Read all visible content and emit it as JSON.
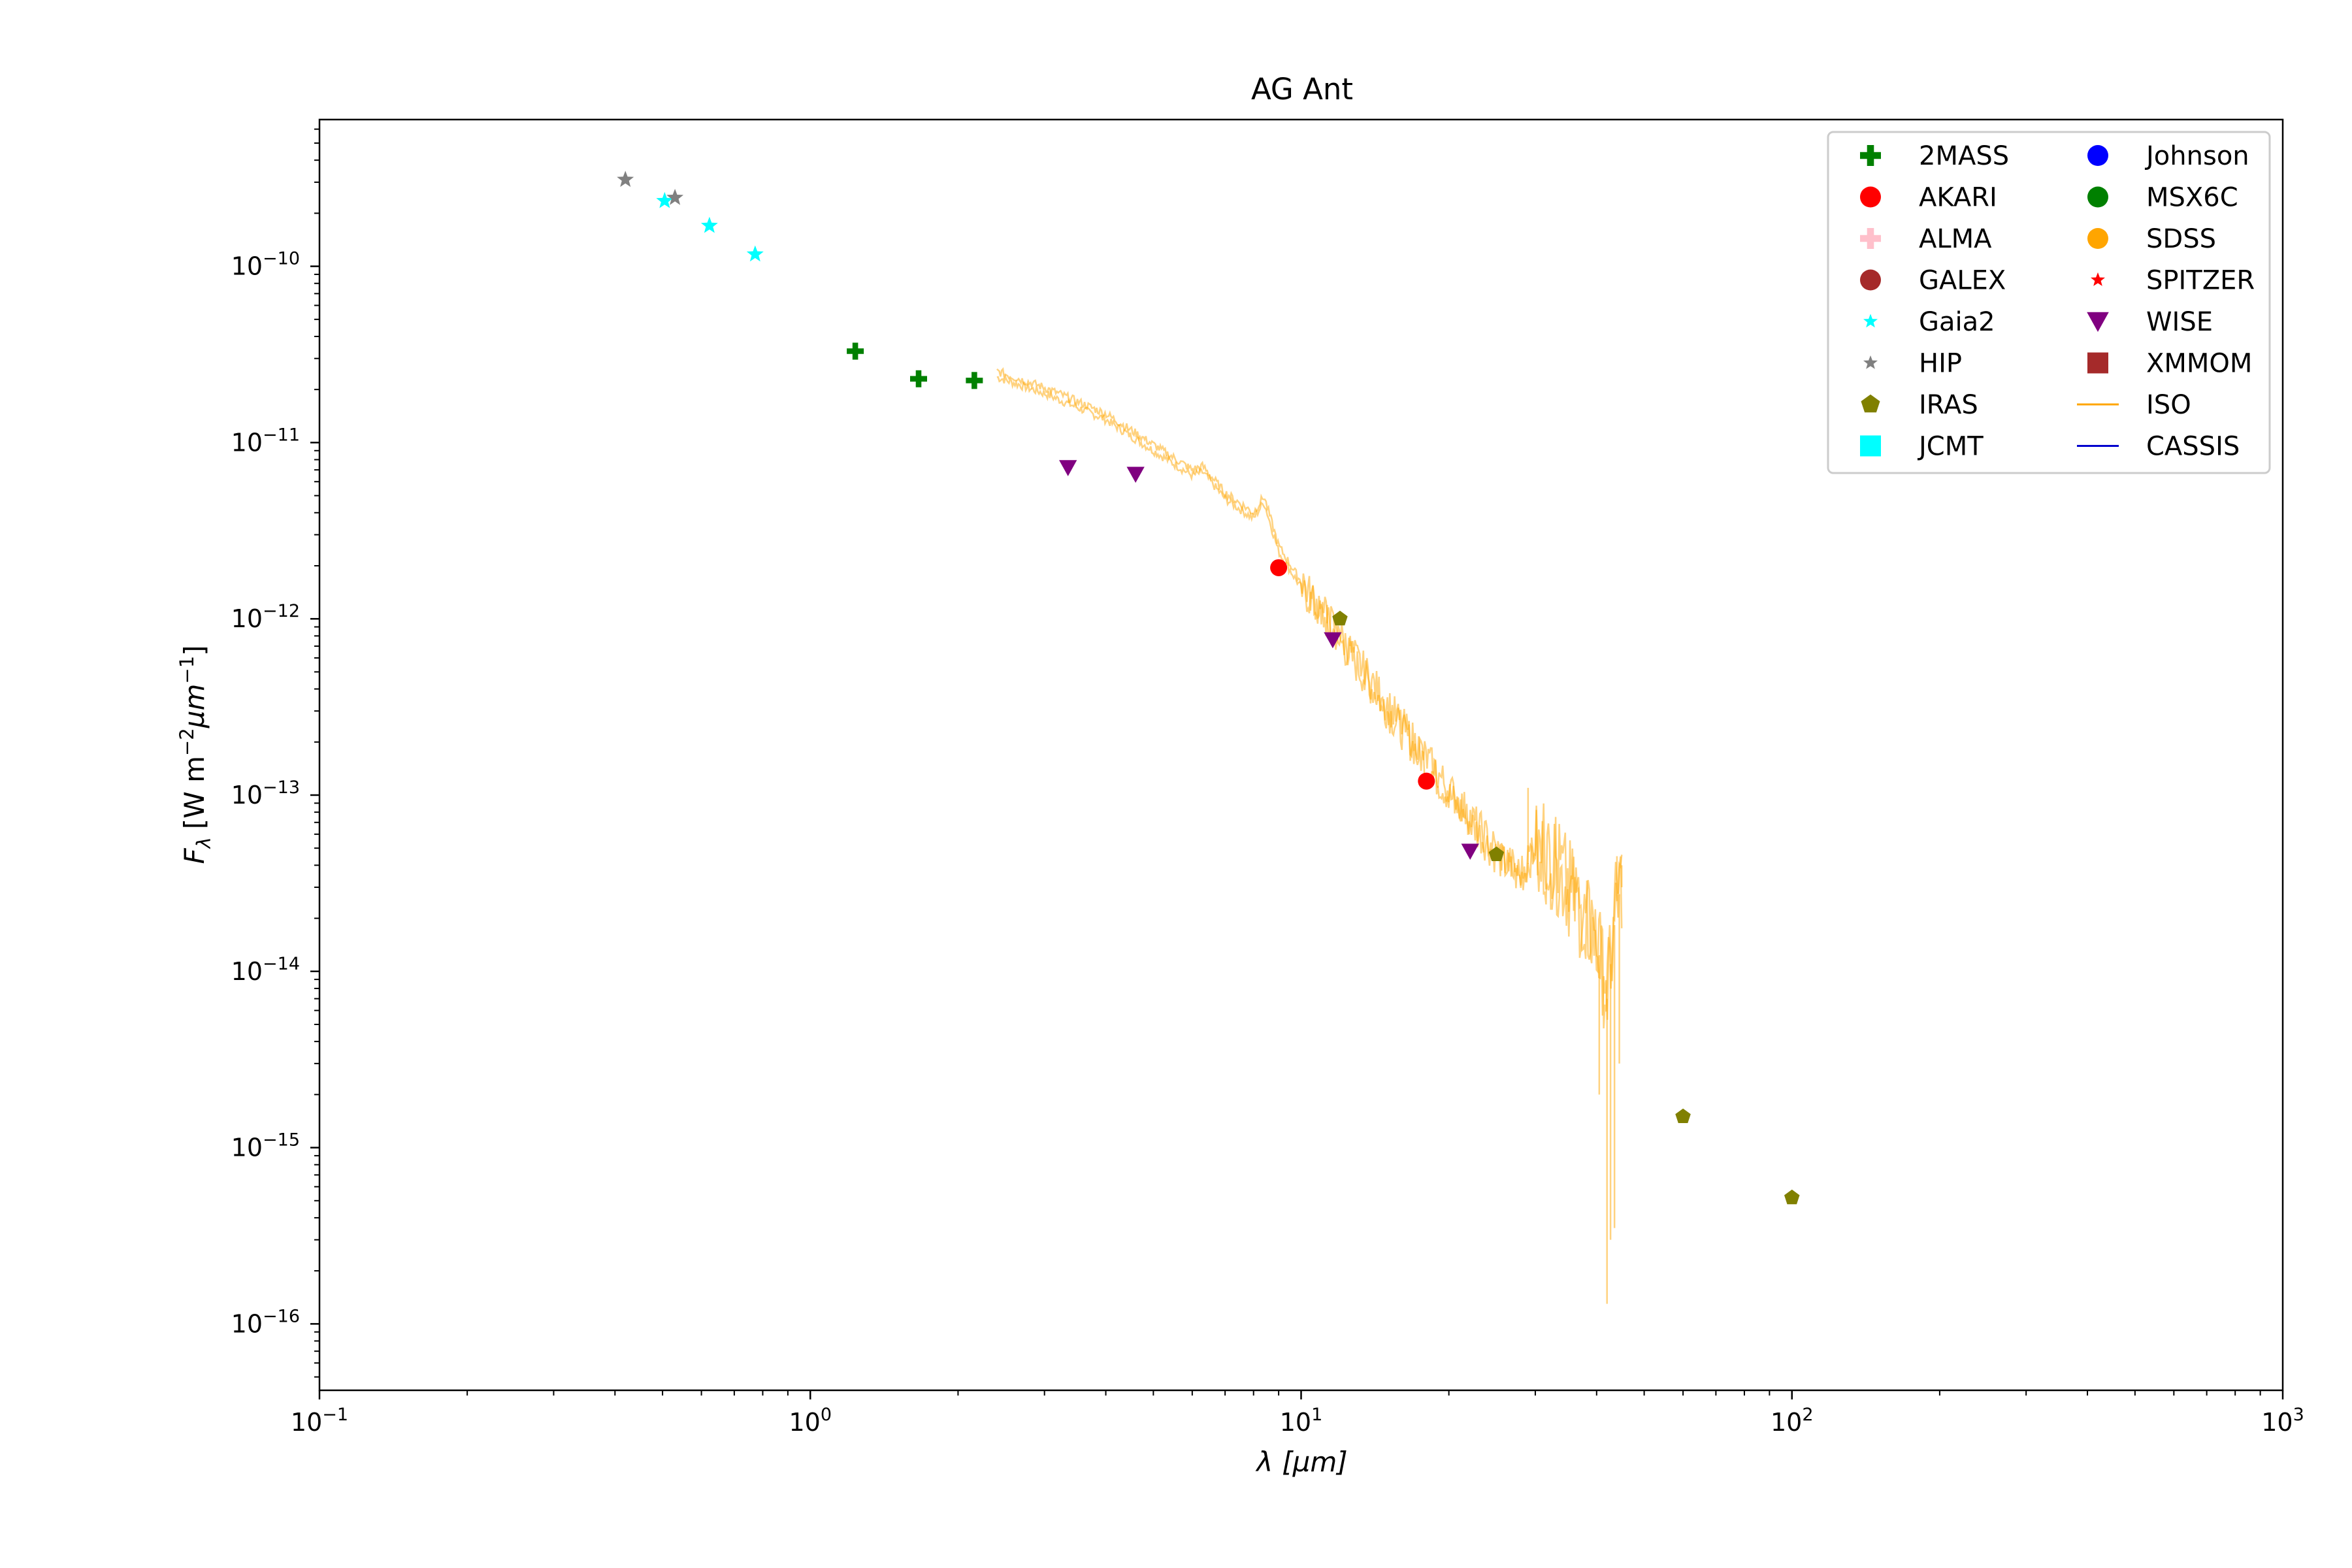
{
  "chart_data": {
    "type": "scatter",
    "title": "AG Ant",
    "xlabel_sym": "λ",
    "xlabel_unit": "[μm]",
    "ylabel_sym": "F",
    "ylabel_sub": "λ",
    "ylabel_unit_a": "[W m",
    "ylabel_unit_b": "μm",
    "ylabel_unit_c": "]",
    "xscale": "log",
    "yscale": "log",
    "xlim": [
      0.1,
      1000
    ],
    "ylim": [
      4.2e-17,
      6.8e-10
    ],
    "xticks": [
      {
        "value": 0.1,
        "base": "10",
        "exp": "−1"
      },
      {
        "value": 1,
        "base": "10",
        "exp": "0"
      },
      {
        "value": 10,
        "base": "10",
        "exp": "1"
      },
      {
        "value": 100,
        "base": "10",
        "exp": "2"
      },
      {
        "value": 1000,
        "base": "10",
        "exp": "3"
      }
    ],
    "yticks": [
      {
        "value": 1e-16,
        "base": "10",
        "exp": "−16"
      },
      {
        "value": 1e-15,
        "base": "10",
        "exp": "−15"
      },
      {
        "value": 1e-14,
        "base": "10",
        "exp": "−14"
      },
      {
        "value": 1e-13,
        "base": "10",
        "exp": "−13"
      },
      {
        "value": 1e-12,
        "base": "10",
        "exp": "−12"
      },
      {
        "value": 1e-11,
        "base": "10",
        "exp": "−11"
      },
      {
        "value": 1e-10,
        "base": "10",
        "exp": "−10"
      }
    ],
    "grid": false,
    "legend_position": "top-right",
    "series": [
      {
        "name": "2MASS",
        "marker": "plus",
        "color": "#008000",
        "points": [
          [
            1.235,
            3.3e-11
          ],
          [
            1.662,
            2.3e-11
          ],
          [
            2.159,
            2.25e-11
          ]
        ]
      },
      {
        "name": "AKARI",
        "marker": "circle",
        "color": "#ff0000",
        "points": [
          [
            9.0,
            1.95e-12
          ],
          [
            18.0,
            1.2e-13
          ]
        ]
      },
      {
        "name": "ALMA",
        "marker": "plus",
        "color": "#ffc0cb",
        "points": []
      },
      {
        "name": "GALEX",
        "marker": "circle",
        "color": "#a52a2a",
        "points": []
      },
      {
        "name": "Gaia2",
        "marker": "star",
        "color": "#00ffff",
        "points": [
          [
            0.505,
            2.35e-10
          ],
          [
            0.623,
            1.7e-10
          ],
          [
            0.772,
            1.17e-10
          ]
        ]
      },
      {
        "name": "HIP",
        "marker": "star",
        "color": "#808080",
        "points": [
          [
            0.42,
            3.1e-10
          ],
          [
            0.53,
            2.45e-10
          ]
        ]
      },
      {
        "name": "IRAS",
        "marker": "pentagon",
        "color": "#808000",
        "points": [
          [
            12,
            1e-12
          ],
          [
            25,
            4.6e-14
          ],
          [
            60,
            1.5e-15
          ],
          [
            100,
            5.2e-16
          ]
        ]
      },
      {
        "name": "JCMT",
        "marker": "square",
        "color": "#00ffff",
        "points": []
      },
      {
        "name": "Johnson",
        "marker": "circle",
        "color": "#0000ff",
        "points": []
      },
      {
        "name": "MSX6C",
        "marker": "circle",
        "color": "#008000",
        "points": []
      },
      {
        "name": "SDSS",
        "marker": "circle",
        "color": "#ffa500",
        "points": []
      },
      {
        "name": "SPITZER",
        "marker": "star",
        "color": "#ff0000",
        "points": []
      },
      {
        "name": "WISE",
        "marker": "triangle-down",
        "color": "#800080",
        "points": [
          [
            3.35,
            7.2e-12
          ],
          [
            4.6,
            6.6e-12
          ],
          [
            11.6,
            7.6e-13
          ],
          [
            22.1,
            4.8e-14
          ]
        ]
      },
      {
        "name": "XMMOM",
        "marker": "square",
        "color": "#a52a2a",
        "points": []
      },
      {
        "name": "ISO",
        "marker": "line",
        "color": "#ffa500",
        "points": []
      },
      {
        "name": "CASSIS",
        "marker": "line",
        "color": "#0000cd",
        "points": []
      }
    ],
    "iso_spectrum": {
      "color": "#ffa500",
      "opacity": 0.5,
      "anchors": [
        [
          2.4,
          2.35e-11
        ],
        [
          3.0,
          1.9e-11
        ],
        [
          4.0,
          1.35e-11
        ],
        [
          5.0,
          9e-12
        ],
        [
          6.0,
          6.5e-12
        ],
        [
          6.3,
          6.8e-12
        ],
        [
          7.0,
          4.8e-12
        ],
        [
          8.0,
          3.7e-12
        ],
        [
          8.4,
          4.6e-12
        ],
        [
          9.0,
          2.4e-12
        ],
        [
          10.0,
          1.5e-12
        ],
        [
          12.0,
          7.5e-13
        ],
        [
          15.0,
          3e-13
        ],
        [
          20.0,
          1e-13
        ],
        [
          25.0,
          4.5e-14
        ],
        [
          28.0,
          3.3e-14
        ],
        [
          30.0,
          5e-14
        ],
        [
          33.0,
          4e-14
        ],
        [
          36.0,
          2.5e-14
        ],
        [
          40.0,
          1.5e-14
        ],
        [
          42.0,
          7e-15
        ],
        [
          44.0,
          2.5e-14
        ],
        [
          45.0,
          3e-14
        ]
      ],
      "dips": [
        [
          42.0,
          1.3e-16
        ],
        [
          42.7,
          3e-16
        ],
        [
          43.5,
          3.5e-16
        ],
        [
          40.5,
          2e-15
        ],
        [
          44.5,
          3e-15
        ]
      ],
      "spikes": [
        [
          11.3,
          1.2e-12
        ],
        [
          29.0,
          1.1e-13
        ],
        [
          44.0,
          4.5e-14
        ],
        [
          45.0,
          4e-14
        ]
      ]
    }
  }
}
